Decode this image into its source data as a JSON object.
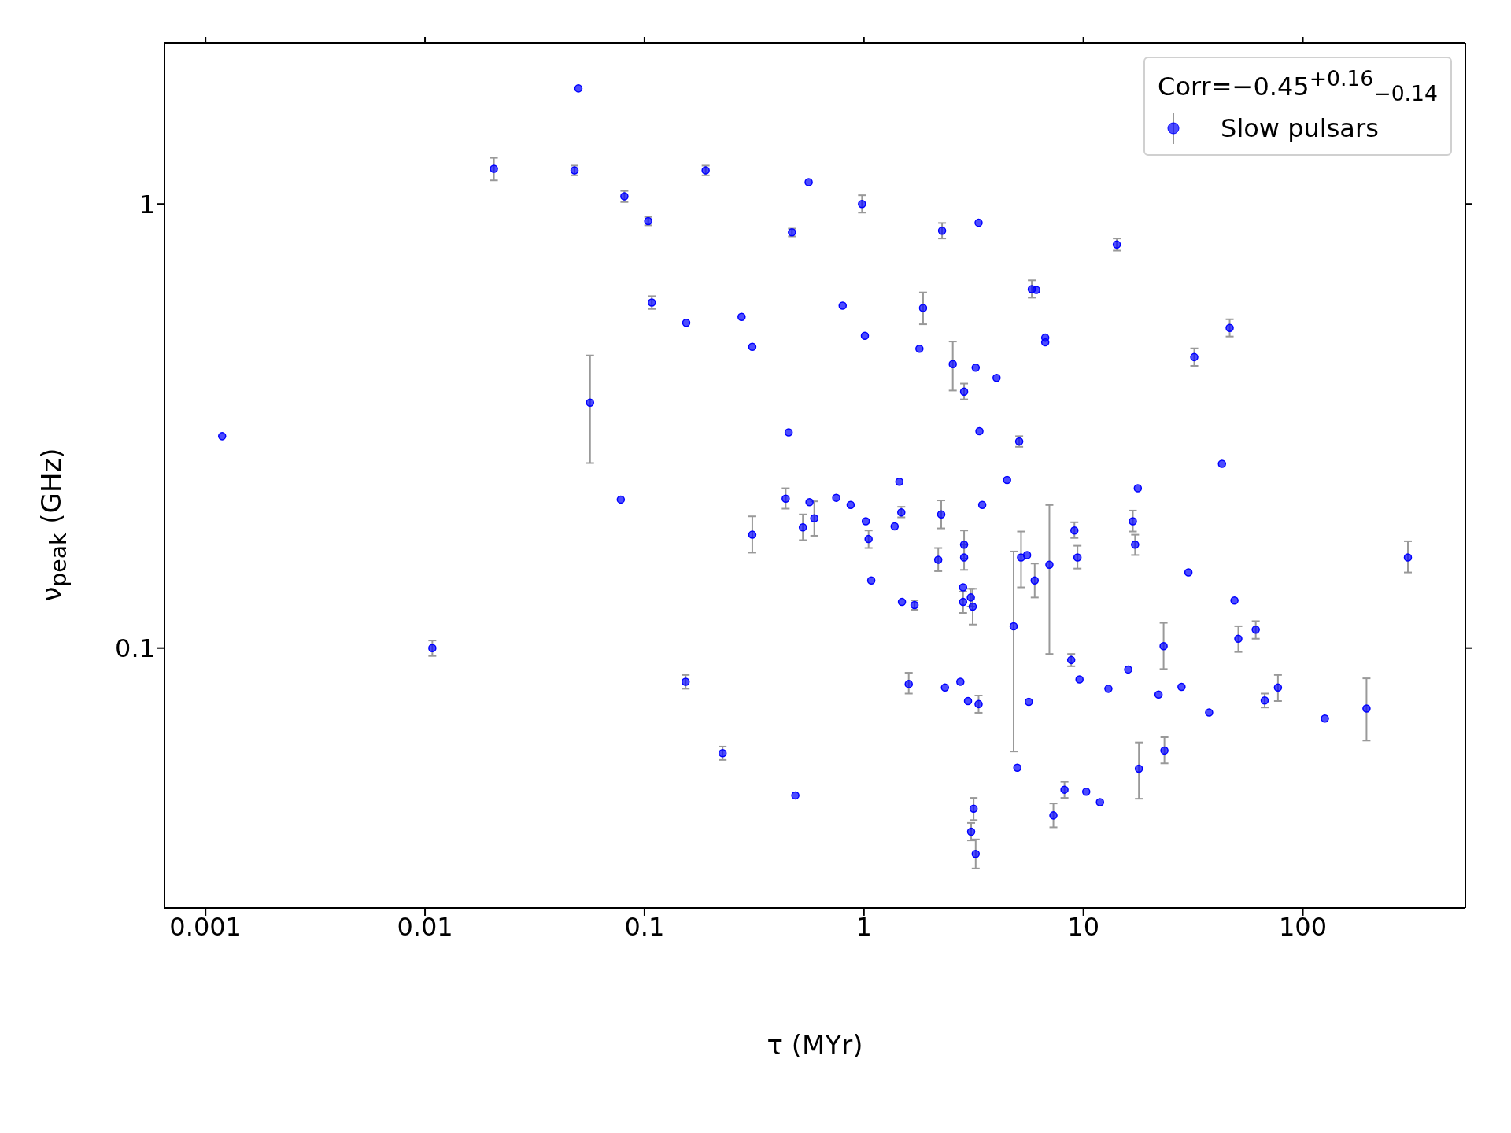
{
  "chart_data": {
    "type": "scatter",
    "xlabel": "τ (MYr)",
    "ylabel": "ν$_{peak}$ (GHz)",
    "legend_title": "Corr=−0.45$^{+0.16}$$_{−0.14}$",
    "log": "xy",
    "legend": "top right",
    "marker": "circle",
    "xlim": [
      0.00065,
      550
    ],
    "ylim": [
      0.026,
      2.3
    ],
    "xticks": [
      0.001,
      0.01,
      0.1,
      1,
      10,
      100
    ],
    "yticks": [
      0.1,
      1
    ],
    "series": [
      {
        "name": "Slow pulsars",
        "color": "#0000ff",
        "x": [
          0.00119,
          0.0108,
          0.0206,
          0.048,
          0.05,
          0.0565,
          0.078,
          0.081,
          0.104,
          0.108,
          0.154,
          0.155,
          0.19,
          0.227,
          0.277,
          0.31,
          0.31,
          0.44,
          0.454,
          0.47,
          0.487,
          0.527,
          0.56,
          0.565,
          0.594,
          0.748,
          0.8,
          0.87,
          0.98,
          1.01,
          1.02,
          1.05,
          1.08,
          1.38,
          1.45,
          1.48,
          1.49,
          1.6,
          1.7,
          1.79,
          1.86,
          2.18,
          2.25,
          2.27,
          2.34,
          2.54,
          2.75,
          2.83,
          2.83,
          2.86,
          2.86,
          2.86,
          2.98,
          3.07,
          3.08,
          3.13,
          3.16,
          3.23,
          3.23,
          3.33,
          3.33,
          3.36,
          3.46,
          4.02,
          4.49,
          4.81,
          5.0,
          5.1,
          5.2,
          5.54,
          5.64,
          5.82,
          6.0,
          6.1,
          6.7,
          6.7,
          7.0,
          7.3,
          8.2,
          8.8,
          9.1,
          9.4,
          9.6,
          10.3,
          11.9,
          13,
          14.2,
          16,
          16.8,
          17.2,
          17.7,
          17.9,
          22,
          23.2,
          23.4,
          28,
          30.1,
          32,
          37.4,
          42.8,
          46.4,
          48.8,
          50.8,
          61,
          67,
          77,
          126,
          195,
          301
        ],
        "values": [
          0.3,
          0.1,
          1.2,
          1.19,
          1.82,
          0.357,
          0.216,
          1.04,
          0.915,
          0.6,
          0.084,
          0.54,
          1.19,
          0.058,
          0.557,
          0.477,
          0.18,
          0.217,
          0.306,
          0.863,
          0.0466,
          0.187,
          1.12,
          0.213,
          0.196,
          0.218,
          0.59,
          0.21,
          1.0,
          0.505,
          0.193,
          0.176,
          0.142,
          0.188,
          0.237,
          0.202,
          0.127,
          0.083,
          0.125,
          0.472,
          0.583,
          0.158,
          0.2,
          0.87,
          0.0815,
          0.436,
          0.084,
          0.137,
          0.127,
          0.378,
          0.171,
          0.16,
          0.076,
          0.13,
          0.0386,
          0.124,
          0.0435,
          0.428,
          0.0344,
          0.907,
          0.0748,
          0.308,
          0.21,
          0.406,
          0.239,
          0.112,
          0.0538,
          0.292,
          0.16,
          0.162,
          0.0757,
          0.643,
          0.142,
          0.64,
          0.5,
          0.488,
          0.154,
          0.042,
          0.048,
          0.094,
          0.184,
          0.16,
          0.085,
          0.0475,
          0.045,
          0.081,
          0.81,
          0.0895,
          0.193,
          0.171,
          0.229,
          0.0535,
          0.0786,
          0.101,
          0.0588,
          0.0818,
          0.148,
          0.452,
          0.0716,
          0.26,
          0.526,
          0.128,
          0.105,
          0.11,
          0.0762,
          0.0815,
          0.0694,
          0.0731,
          0.16
        ],
        "errors": [
          null,
          [
            0.096,
            0.104
          ],
          [
            1.13,
            1.27
          ],
          [
            1.16,
            1.22
          ],
          null,
          [
            0.261,
            0.456
          ],
          null,
          [
            1.01,
            1.07
          ],
          [
            0.895,
            0.935
          ],
          [
            0.58,
            0.62
          ],
          [
            0.081,
            0.087
          ],
          null,
          [
            1.16,
            1.22
          ],
          [
            0.056,
            0.06
          ],
          null,
          null,
          [
            0.164,
            0.198
          ],
          [
            0.206,
            0.229
          ],
          null,
          [
            0.845,
            0.88
          ],
          null,
          [
            0.175,
            0.2
          ],
          null,
          null,
          [
            0.179,
            0.214
          ],
          null,
          null,
          null,
          [
            0.956,
            1.046
          ],
          null,
          null,
          [
            0.168,
            0.184
          ],
          null,
          null,
          null,
          [
            0.197,
            0.208
          ],
          null,
          [
            0.079,
            0.088
          ],
          [
            0.122,
            0.128
          ],
          null,
          [
            0.536,
            0.632
          ],
          [
            0.149,
            0.168
          ],
          [
            0.186,
            0.215
          ],
          [
            0.836,
            0.906
          ],
          null,
          [
            0.38,
            0.49
          ],
          null,
          null,
          [
            0.12,
            0.134
          ],
          [
            0.363,
            0.394
          ],
          [
            0.159,
            0.184
          ],
          [
            0.15,
            0.171
          ],
          null,
          [
            0.124,
            0.136
          ],
          [
            0.0369,
            0.0404
          ],
          [
            0.113,
            0.136
          ],
          [
            0.041,
            0.046
          ],
          null,
          [
            0.0319,
            0.0371
          ],
          null,
          [
            0.0715,
            0.0782
          ],
          null,
          null,
          null,
          null,
          [
            0.0585,
            0.165
          ],
          null,
          [
            0.284,
            0.3
          ],
          [
            0.137,
            0.183
          ],
          null,
          null,
          [
            0.615,
            0.673
          ],
          [
            0.13,
            0.155
          ],
          null,
          null,
          null,
          [
            0.097,
            0.21
          ],
          [
            0.0395,
            0.0447
          ],
          [
            0.046,
            0.05
          ],
          [
            0.091,
            0.097
          ],
          [
            0.177,
            0.192
          ],
          [
            0.151,
            0.17
          ],
          null,
          null,
          null,
          null,
          [
            0.785,
            0.836
          ],
          null,
          [
            0.183,
            0.204
          ],
          [
            0.162,
            0.18
          ],
          null,
          [
            0.0458,
            0.0613
          ],
          null,
          [
            0.0897,
            0.114
          ],
          [
            0.055,
            0.063
          ],
          null,
          null,
          [
            0.432,
            0.473
          ],
          null,
          null,
          [
            0.503,
            0.55
          ],
          null,
          [
            0.098,
            0.112
          ],
          [
            0.105,
            0.115
          ],
          [
            0.0735,
            0.079
          ],
          [
            0.076,
            0.087
          ],
          null,
          [
            0.0619,
            0.0855
          ],
          [
            0.148,
            0.174
          ]
        ]
      }
    ]
  }
}
